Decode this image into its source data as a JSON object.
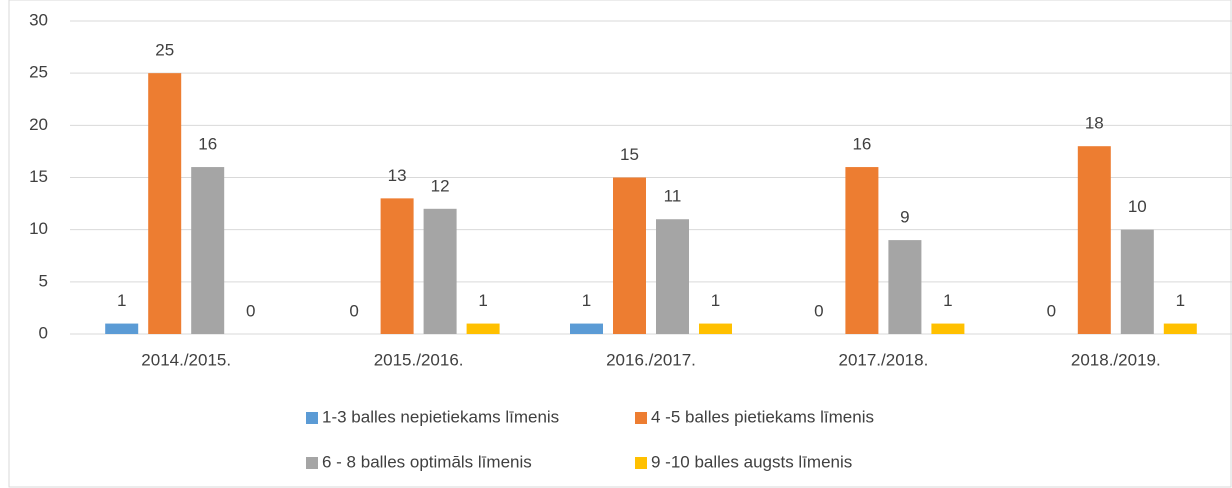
{
  "chart_data": {
    "type": "bar",
    "categories": [
      "2014./2015.",
      "2015./2016.",
      "2016./2017.",
      "2017./2018.",
      "2018./2019."
    ],
    "series": [
      {
        "name": "1-3 balles nepietiekams līmenis",
        "color": "#5b9bd5",
        "values": [
          1,
          0,
          1,
          0,
          0
        ]
      },
      {
        "name": "4 -5 balles pietiekams līmenis",
        "color": "#ed7d31",
        "values": [
          25,
          13,
          15,
          16,
          18
        ]
      },
      {
        "name": "6 - 8 balles optimāls līmenis",
        "color": "#a5a5a5",
        "values": [
          16,
          12,
          11,
          9,
          10
        ]
      },
      {
        "name": "9 -10 balles augsts līmenis",
        "color": "#ffc000",
        "values": [
          0,
          1,
          1,
          1,
          1
        ]
      }
    ],
    "ylim": [
      0,
      30
    ],
    "yticks": [
      0,
      5,
      10,
      15,
      20,
      25,
      30
    ],
    "grid": true,
    "legend": "bottom"
  }
}
